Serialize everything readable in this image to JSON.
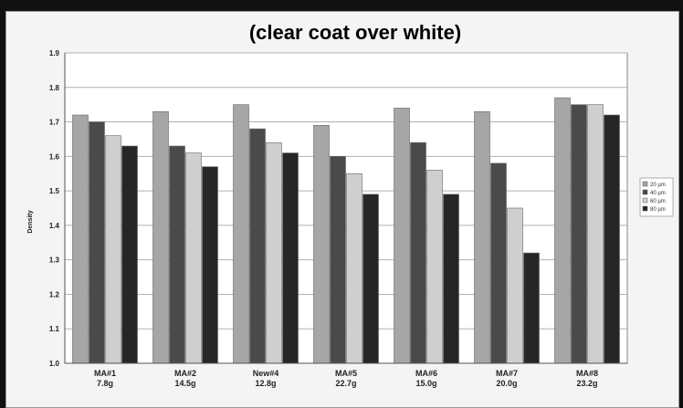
{
  "headline": "",
  "chart_data": {
    "type": "bar",
    "title": "(clear coat over white)",
    "xlabel": "",
    "ylabel": "Density",
    "ylim": [
      1.0,
      1.8
    ],
    "yticks": [
      "1.0",
      "1.1",
      "1.2",
      "1.3",
      "1.4",
      "1.5",
      "1.6",
      "1.7",
      "1.8",
      "1.9"
    ],
    "yticks_values": [
      1.0,
      1.1,
      1.2,
      1.3,
      1.4,
      1.5,
      1.6,
      1.7,
      1.8,
      1.9
    ],
    "categories": [
      [
        "MA#1",
        "7.8g"
      ],
      [
        "MA#2",
        "14.5g"
      ],
      [
        "New#4",
        "12.8g"
      ],
      [
        "MA#5",
        "22.7g"
      ],
      [
        "MA#6",
        "15.0g"
      ],
      [
        "MA#7",
        "20.0g"
      ],
      [
        "MA#8",
        "23.2g"
      ]
    ],
    "series": [
      {
        "name": "20 µm",
        "color": "#a6a6a6",
        "values": [
          1.72,
          1.73,
          1.75,
          1.69,
          1.74,
          1.73,
          1.77
        ]
      },
      {
        "name": "40 µm",
        "color": "#4a4a4a",
        "values": [
          1.7,
          1.63,
          1.68,
          1.6,
          1.64,
          1.58,
          1.75
        ]
      },
      {
        "name": "60 µm",
        "color": "#cfcfcf",
        "values": [
          1.66,
          1.61,
          1.64,
          1.55,
          1.56,
          1.45,
          1.75
        ]
      },
      {
        "name": "80 µm",
        "color": "#262626",
        "values": [
          1.63,
          1.57,
          1.61,
          1.49,
          1.49,
          1.32,
          1.72
        ]
      }
    ],
    "grid": true,
    "legend_position": "right"
  }
}
